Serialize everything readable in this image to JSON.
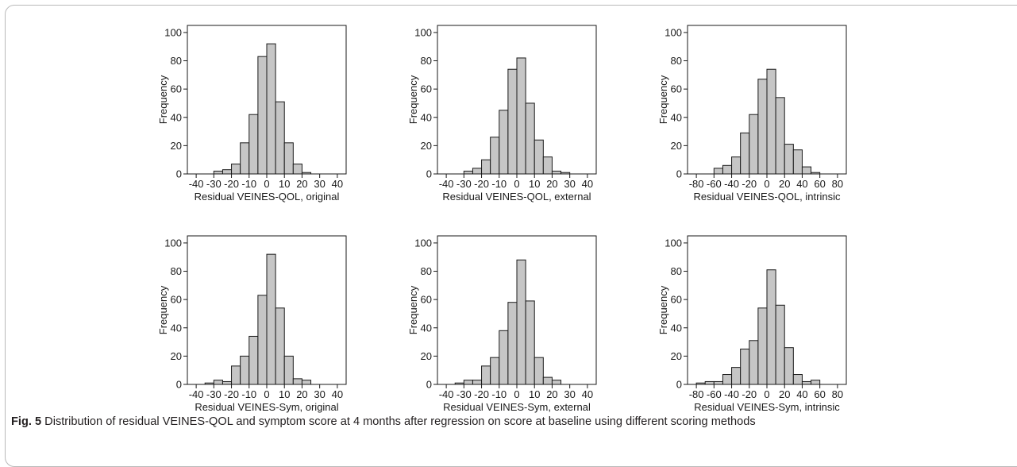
{
  "caption": {
    "label": "Fig. 5",
    "text": "Distribution of residual VEINES-QOL and symptom score at 4 months after regression on score at baseline using different scoring methods"
  },
  "style": {
    "bar_fill": "#c6c6c6",
    "bar_stroke": "#1a1a1a"
  },
  "chart_data": [
    {
      "type": "bar",
      "xlabel": "Residual VEINES-QOL, original",
      "ylabel": "Frequency",
      "xlim": [
        -45,
        45
      ],
      "ylim": [
        0,
        105
      ],
      "xticks": [
        -40,
        -30,
        -20,
        -10,
        0,
        10,
        20,
        30,
        40
      ],
      "yticks": [
        0,
        20,
        40,
        60,
        80,
        100
      ],
      "bin_width": 5,
      "bin_starts": [
        -30,
        -25,
        -20,
        -15,
        -10,
        -5,
        0,
        5,
        10,
        15,
        20
      ],
      "values": [
        2,
        3,
        7,
        22,
        42,
        83,
        92,
        51,
        22,
        7,
        1
      ]
    },
    {
      "type": "bar",
      "xlabel": "Residual VEINES-QOL, external",
      "ylabel": "Frequency",
      "xlim": [
        -45,
        45
      ],
      "ylim": [
        0,
        105
      ],
      "xticks": [
        -40,
        -30,
        -20,
        -10,
        0,
        10,
        20,
        30,
        40
      ],
      "yticks": [
        0,
        20,
        40,
        60,
        80,
        100
      ],
      "bin_width": 5,
      "bin_starts": [
        -30,
        -25,
        -20,
        -15,
        -10,
        -5,
        0,
        5,
        10,
        15,
        20,
        25
      ],
      "values": [
        2,
        4,
        10,
        26,
        45,
        74,
        82,
        50,
        24,
        12,
        2,
        1
      ]
    },
    {
      "type": "bar",
      "xlabel": "Residual VEINES-QOL, intrinsic",
      "ylabel": "Frequency",
      "xlim": [
        -90,
        90
      ],
      "ylim": [
        0,
        105
      ],
      "xticks": [
        -80,
        -60,
        -40,
        -20,
        0,
        20,
        40,
        60,
        80
      ],
      "yticks": [
        0,
        20,
        40,
        60,
        80,
        100
      ],
      "bin_width": 10,
      "bin_starts": [
        -60,
        -50,
        -40,
        -30,
        -20,
        -10,
        0,
        10,
        20,
        30,
        40,
        50
      ],
      "values": [
        4,
        6,
        12,
        29,
        42,
        67,
        74,
        54,
        21,
        17,
        5,
        1
      ]
    },
    {
      "type": "bar",
      "xlabel": "Residual VEINES-Sym, original",
      "ylabel": "Frequency",
      "xlim": [
        -45,
        45
      ],
      "ylim": [
        0,
        105
      ],
      "xticks": [
        -40,
        -30,
        -20,
        -10,
        0,
        10,
        20,
        30,
        40
      ],
      "yticks": [
        0,
        20,
        40,
        60,
        80,
        100
      ],
      "bin_width": 5,
      "bin_starts": [
        -35,
        -30,
        -25,
        -20,
        -15,
        -10,
        -5,
        0,
        5,
        10,
        15,
        20
      ],
      "values": [
        1,
        3,
        2,
        13,
        20,
        34,
        63,
        92,
        54,
        20,
        4,
        3
      ]
    },
    {
      "type": "bar",
      "xlabel": "Residual VEINES-Sym, external",
      "ylabel": "Frequency",
      "xlim": [
        -45,
        45
      ],
      "ylim": [
        0,
        105
      ],
      "xticks": [
        -40,
        -30,
        -20,
        -10,
        0,
        10,
        20,
        30,
        40
      ],
      "yticks": [
        0,
        20,
        40,
        60,
        80,
        100
      ],
      "bin_width": 5,
      "bin_starts": [
        -35,
        -30,
        -25,
        -20,
        -15,
        -10,
        -5,
        0,
        5,
        10,
        15,
        20
      ],
      "values": [
        1,
        3,
        3,
        13,
        19,
        38,
        58,
        88,
        59,
        19,
        5,
        3
      ]
    },
    {
      "type": "bar",
      "xlabel": "Residual VEINES-Sym, intrinsic",
      "ylabel": "Frequency",
      "xlim": [
        -90,
        90
      ],
      "ylim": [
        0,
        105
      ],
      "xticks": [
        -80,
        -60,
        -40,
        -20,
        0,
        20,
        40,
        60,
        80
      ],
      "yticks": [
        0,
        20,
        40,
        60,
        80,
        100
      ],
      "bin_width": 10,
      "bin_starts": [
        -80,
        -70,
        -60,
        -50,
        -40,
        -30,
        -20,
        -10,
        0,
        10,
        20,
        30,
        40,
        50
      ],
      "values": [
        1,
        2,
        2,
        7,
        12,
        25,
        31,
        54,
        81,
        56,
        26,
        7,
        2,
        3
      ]
    }
  ]
}
